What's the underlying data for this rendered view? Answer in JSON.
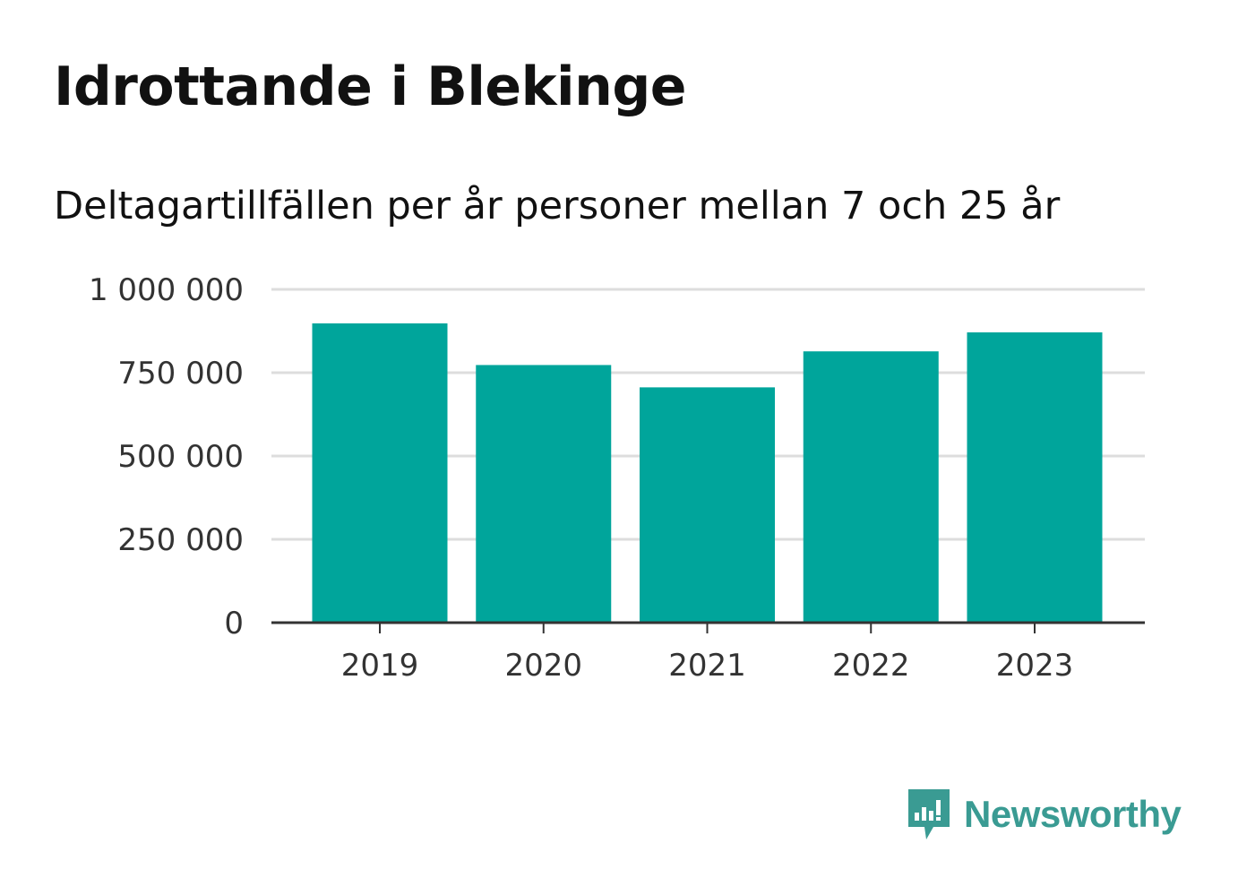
{
  "title": "Idrottande i Blekinge",
  "subtitle": "Deltagartillfällen per år personer mellan 7 och 25 år",
  "brand": {
    "name": "Newsworthy",
    "color": "#3a9b93",
    "icon": "newsworthy-logo-icon"
  },
  "colors": {
    "bar": "#00a59b",
    "grid": "#dddddd",
    "axis": "#333333"
  },
  "chart_data": {
    "type": "bar",
    "categories": [
      "2019",
      "2020",
      "2021",
      "2022",
      "2023"
    ],
    "values": [
      898000,
      773000,
      706000,
      814000,
      871000
    ],
    "ylim": [
      0,
      1000000
    ],
    "yticks": [
      0,
      250000,
      500000,
      750000,
      1000000
    ],
    "ytick_labels": [
      "0",
      "250 000",
      "500 000",
      "750 000",
      "1 000 000"
    ],
    "grid": true,
    "legend": "none"
  }
}
